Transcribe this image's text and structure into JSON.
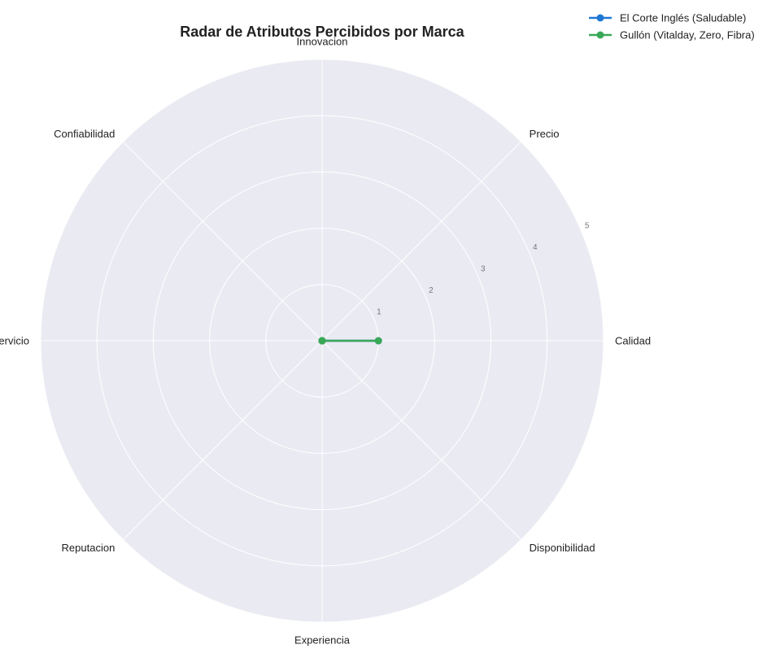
{
  "chart_data": {
    "type": "radar",
    "title": "Radar de Atributos Percibidos por Marca",
    "categories": [
      "Calidad",
      "Precio",
      "Innovacion",
      "Confiabilidad",
      "Servicio",
      "Reputacion",
      "Experiencia",
      "Disponibilidad"
    ],
    "rlim": [
      0,
      5
    ],
    "rticks": [
      1,
      2,
      3,
      4,
      5
    ],
    "grid": true,
    "legend_position": "top-right",
    "series": [
      {
        "name": "El Corte Inglés (Saludable)",
        "color": "#1f77d4",
        "values": [
          1,
          0,
          0,
          0,
          0,
          0,
          0,
          0
        ]
      },
      {
        "name": "Gullón (Vitalday, Zero, Fibra)",
        "color": "#3aa857",
        "values": [
          1,
          0,
          0,
          0,
          0,
          0,
          0,
          0
        ]
      }
    ]
  },
  "colors": {
    "panel_background": "#eaeaf2",
    "grid": "#ffffff"
  }
}
